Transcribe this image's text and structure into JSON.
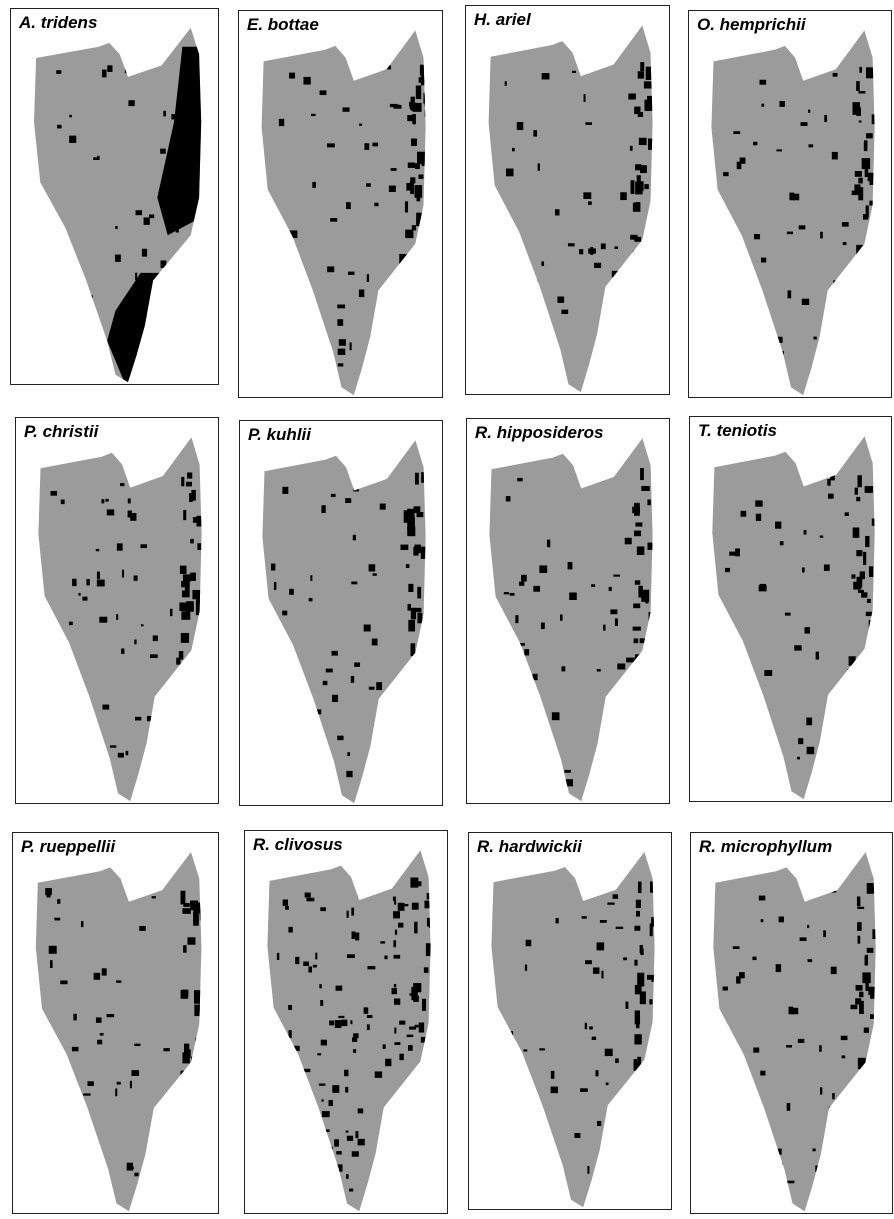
{
  "panels": [
    {
      "label": "A. tridens"
    },
    {
      "label": "E. bottae"
    },
    {
      "label": "H. ariel"
    },
    {
      "label": "O. hemprichii"
    },
    {
      "label": "P. christii"
    },
    {
      "label": "P. kuhlii"
    },
    {
      "label": "R. hipposideros"
    },
    {
      "label": "T. teniotis"
    },
    {
      "label": "P. rueppellii"
    },
    {
      "label": "R. clivosus"
    },
    {
      "label": "R. hardwickii"
    },
    {
      "label": "R. microphyllum"
    }
  ]
}
